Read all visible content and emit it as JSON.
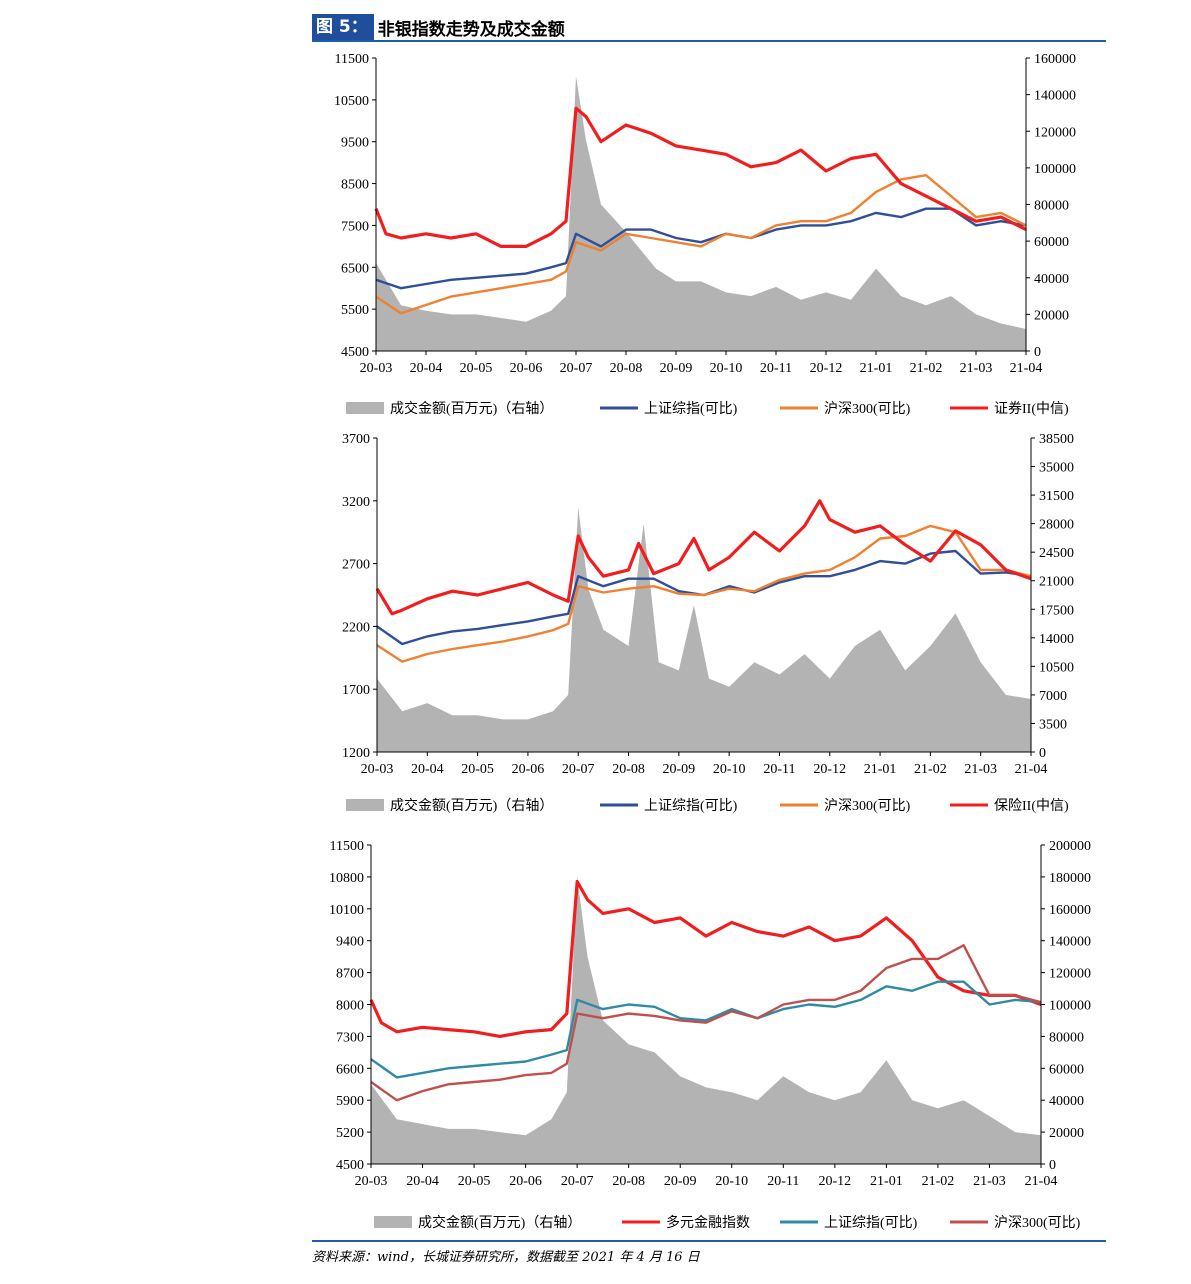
{
  "figure": {
    "label": "图 5：",
    "title": "非银指数走势及成交金额"
  },
  "source": "资料来源：wind，长城证券研究所，数据截至 2021 年 4 月 16 日",
  "chart_data": [
    {
      "type": "line",
      "x_ticks": [
        "20-03",
        "20-04",
        "20-05",
        "20-06",
        "20-07",
        "20-08",
        "20-09",
        "20-10",
        "20-11",
        "20-12",
        "21-01",
        "21-02",
        "21-03",
        "21-04"
      ],
      "y_left": {
        "ticks": [
          "4500",
          "5500",
          "6500",
          "7500",
          "8500",
          "9500",
          "10500",
          "11500"
        ],
        "lim": [
          4500,
          11500
        ]
      },
      "y_right": {
        "ticks": [
          "0",
          "20000",
          "40000",
          "60000",
          "80000",
          "100000",
          "120000",
          "140000",
          "160000"
        ],
        "lim": [
          0,
          160000
        ]
      },
      "series": [
        {
          "name": "成交金额(百万元)（右轴）",
          "kind": "area",
          "axis": "right",
          "color": "#b3b3b3",
          "x": [
            0,
            0.5,
            1,
            1.5,
            2,
            2.5,
            3,
            3.5,
            3.8,
            4.0,
            4.2,
            4.5,
            5,
            5.3,
            5.6,
            6,
            6.5,
            7,
            7.5,
            8,
            8.5,
            9,
            9.5,
            10,
            10.5,
            11,
            11.5,
            12,
            12.5,
            13
          ],
          "values": [
            48000,
            25000,
            22000,
            20000,
            20000,
            18000,
            16000,
            22000,
            30000,
            150000,
            115000,
            80000,
            65000,
            55000,
            45000,
            38000,
            38000,
            32000,
            30000,
            35000,
            28000,
            32000,
            28000,
            45000,
            30000,
            25000,
            30000,
            20000,
            15000,
            12000
          ]
        },
        {
          "name": "上证综指(可比)",
          "kind": "line",
          "axis": "left",
          "color": "#2f4f9a",
          "x": [
            0,
            0.5,
            1,
            1.5,
            2,
            2.5,
            3,
            3.5,
            3.8,
            4.0,
            4.5,
            5,
            5.5,
            6,
            6.5,
            7,
            7.5,
            8,
            8.5,
            9,
            9.5,
            10,
            10.5,
            11,
            11.5,
            12,
            12.5,
            13
          ],
          "values": [
            6200,
            6000,
            6100,
            6200,
            6250,
            6300,
            6350,
            6500,
            6600,
            7300,
            7000,
            7400,
            7400,
            7200,
            7100,
            7300,
            7200,
            7400,
            7500,
            7500,
            7600,
            7800,
            7700,
            7900,
            7900,
            7500,
            7600,
            7500
          ]
        },
        {
          "name": "沪深300(可比)",
          "kind": "line",
          "axis": "left",
          "color": "#ef8131",
          "x": [
            0,
            0.5,
            1,
            1.5,
            2,
            2.5,
            3,
            3.5,
            3.8,
            4.0,
            4.5,
            5,
            5.5,
            6,
            6.5,
            7,
            7.5,
            8,
            8.5,
            9,
            9.5,
            10,
            10.5,
            11,
            11.5,
            12,
            12.5,
            13
          ],
          "values": [
            5800,
            5400,
            5600,
            5800,
            5900,
            6000,
            6100,
            6200,
            6400,
            7100,
            6900,
            7300,
            7200,
            7100,
            7000,
            7300,
            7200,
            7500,
            7600,
            7600,
            7800,
            8300,
            8600,
            8700,
            8200,
            7700,
            7800,
            7500
          ]
        },
        {
          "name": "证券II(中信)",
          "kind": "line",
          "axis": "left",
          "color": "#f01e1e",
          "x": [
            0,
            0.2,
            0.5,
            1,
            1.5,
            2,
            2.5,
            3,
            3.5,
            3.8,
            4.0,
            4.2,
            4.5,
            5,
            5.5,
            6,
            6.5,
            7,
            7.5,
            8,
            8.5,
            9,
            9.5,
            10,
            10.5,
            11,
            11.5,
            12,
            12.5,
            13
          ],
          "values": [
            7900,
            7300,
            7200,
            7300,
            7200,
            7300,
            7000,
            7000,
            7300,
            7600,
            10300,
            10100,
            9500,
            9900,
            9700,
            9400,
            9300,
            9200,
            8900,
            9000,
            9300,
            8800,
            9100,
            9200,
            8500,
            8200,
            7900,
            7600,
            7700,
            7400
          ]
        }
      ]
    },
    {
      "type": "line",
      "x_ticks": [
        "20-03",
        "20-04",
        "20-05",
        "20-06",
        "20-07",
        "20-08",
        "20-09",
        "20-10",
        "20-11",
        "20-12",
        "21-01",
        "21-02",
        "21-03",
        "21-04"
      ],
      "y_left": {
        "ticks": [
          "1200",
          "1700",
          "2200",
          "2700",
          "3200",
          "3700"
        ],
        "lim": [
          1200,
          3700
        ]
      },
      "y_right": {
        "ticks": [
          "0",
          "3500",
          "7000",
          "10500",
          "14000",
          "17500",
          "21000",
          "24500",
          "28000",
          "31500",
          "35000",
          "38500"
        ],
        "lim": [
          0,
          38500
        ]
      },
      "series": [
        {
          "name": "成交金额(百万元)（右轴）",
          "kind": "area",
          "axis": "right",
          "color": "#b3b3b3",
          "x": [
            0,
            0.5,
            1,
            1.5,
            2,
            2.5,
            3,
            3.5,
            3.8,
            4.0,
            4.2,
            4.5,
            5,
            5.3,
            5.6,
            6,
            6.3,
            6.6,
            7,
            7.5,
            8,
            8.5,
            9,
            9.5,
            10,
            10.5,
            11,
            11.5,
            12,
            12.5,
            13
          ],
          "values": [
            9000,
            5000,
            6000,
            4500,
            4500,
            4000,
            4000,
            5000,
            7000,
            30000,
            20000,
            15000,
            13000,
            28000,
            11000,
            10000,
            18000,
            9000,
            8000,
            11000,
            9500,
            12000,
            9000,
            13000,
            15000,
            10000,
            13000,
            17000,
            11000,
            7000,
            6500
          ]
        },
        {
          "name": "上证综指(可比)",
          "kind": "line",
          "axis": "left",
          "color": "#2f4f9a",
          "x": [
            0,
            0.5,
            1,
            1.5,
            2,
            2.5,
            3,
            3.5,
            3.8,
            4.0,
            4.5,
            5,
            5.5,
            6,
            6.5,
            7,
            7.5,
            8,
            8.5,
            9,
            9.5,
            10,
            10.5,
            11,
            11.5,
            12,
            12.5,
            13
          ],
          "values": [
            2200,
            2060,
            2120,
            2160,
            2180,
            2210,
            2240,
            2280,
            2300,
            2600,
            2520,
            2580,
            2580,
            2480,
            2450,
            2520,
            2470,
            2550,
            2600,
            2600,
            2650,
            2720,
            2700,
            2780,
            2800,
            2620,
            2630,
            2600
          ]
        },
        {
          "name": "沪深300(可比)",
          "kind": "line",
          "axis": "left",
          "color": "#ef8131",
          "x": [
            0,
            0.5,
            1,
            1.5,
            2,
            2.5,
            3,
            3.5,
            3.8,
            4.0,
            4.5,
            5,
            5.5,
            6,
            6.5,
            7,
            7.5,
            8,
            8.5,
            9,
            9.5,
            10,
            10.5,
            11,
            11.5,
            12,
            12.5,
            13
          ],
          "values": [
            2050,
            1920,
            1980,
            2020,
            2050,
            2080,
            2120,
            2170,
            2220,
            2520,
            2470,
            2500,
            2520,
            2460,
            2450,
            2500,
            2480,
            2570,
            2620,
            2650,
            2750,
            2900,
            2920,
            3000,
            2950,
            2650,
            2650,
            2600
          ]
        },
        {
          "name": "保险II(中信)",
          "kind": "line",
          "axis": "left",
          "color": "#f01e1e",
          "x": [
            0,
            0.3,
            0.5,
            1,
            1.5,
            2,
            2.5,
            3,
            3.5,
            3.8,
            4.0,
            4.2,
            4.5,
            5,
            5.2,
            5.5,
            6,
            6.3,
            6.6,
            7,
            7.5,
            8,
            8.5,
            8.8,
            9,
            9.5,
            10,
            10.5,
            11,
            11.5,
            12,
            12.5,
            13
          ],
          "values": [
            2500,
            2300,
            2330,
            2420,
            2480,
            2450,
            2500,
            2550,
            2450,
            2400,
            2920,
            2750,
            2600,
            2650,
            2860,
            2620,
            2700,
            2900,
            2650,
            2750,
            2950,
            2800,
            3000,
            3200,
            3050,
            2950,
            3000,
            2850,
            2720,
            2960,
            2850,
            2650,
            2580
          ]
        }
      ]
    },
    {
      "type": "line",
      "x_ticks": [
        "20-03",
        "20-04",
        "20-05",
        "20-06",
        "20-07",
        "20-08",
        "20-09",
        "20-10",
        "20-11",
        "20-12",
        "21-01",
        "21-02",
        "21-03",
        "21-04"
      ],
      "y_left": {
        "ticks": [
          "4500",
          "5200",
          "5900",
          "6600",
          "7300",
          "8000",
          "8700",
          "9400",
          "10100",
          "10800",
          "11500"
        ],
        "lim": [
          4500,
          11500
        ]
      },
      "y_right": {
        "ticks": [
          "0",
          "20000",
          "40000",
          "60000",
          "80000",
          "100000",
          "120000",
          "140000",
          "160000",
          "180000",
          "200000"
        ],
        "lim": [
          0,
          200000
        ]
      },
      "series": [
        {
          "name": "成交金额(百万元)（右轴）",
          "kind": "area",
          "axis": "right",
          "color": "#b3b3b3",
          "x": [
            0,
            0.5,
            1,
            1.5,
            2,
            2.5,
            3,
            3.5,
            3.8,
            4.0,
            4.2,
            4.5,
            5,
            5.5,
            6,
            6.5,
            7,
            7.5,
            8,
            8.5,
            9,
            9.5,
            10,
            10.5,
            11,
            11.5,
            12,
            12.5,
            13
          ],
          "values": [
            50000,
            28000,
            25000,
            22000,
            22000,
            20000,
            18000,
            28000,
            45000,
            180000,
            130000,
            90000,
            75000,
            70000,
            55000,
            48000,
            45000,
            40000,
            55000,
            45000,
            40000,
            45000,
            65000,
            40000,
            35000,
            40000,
            30000,
            20000,
            18000
          ]
        },
        {
          "name": "多元金融指数",
          "kind": "line",
          "axis": "left",
          "color": "#f01e1e",
          "x": [
            0,
            0.2,
            0.5,
            1,
            1.5,
            2,
            2.5,
            3,
            3.5,
            3.8,
            4.0,
            4.2,
            4.5,
            5,
            5.5,
            6,
            6.5,
            7,
            7.5,
            8,
            8.5,
            9,
            9.5,
            10,
            10.5,
            11,
            11.5,
            12,
            12.5,
            13
          ],
          "values": [
            8100,
            7600,
            7400,
            7500,
            7450,
            7400,
            7300,
            7400,
            7450,
            7800,
            10700,
            10300,
            10000,
            10100,
            9800,
            9900,
            9500,
            9800,
            9600,
            9500,
            9700,
            9400,
            9500,
            9900,
            9400,
            8600,
            8300,
            8200,
            8200,
            8000
          ]
        },
        {
          "name": "上证综指(可比)",
          "kind": "line",
          "axis": "left",
          "color": "#2e8ba6",
          "x": [
            0,
            0.5,
            1,
            1.5,
            2,
            2.5,
            3,
            3.5,
            3.8,
            4.0,
            4.5,
            5,
            5.5,
            6,
            6.5,
            7,
            7.5,
            8,
            8.5,
            9,
            9.5,
            10,
            10.5,
            11,
            11.5,
            12,
            12.5,
            13
          ],
          "values": [
            6800,
            6400,
            6500,
            6600,
            6650,
            6700,
            6750,
            6900,
            7000,
            8100,
            7900,
            8000,
            7950,
            7700,
            7650,
            7900,
            7700,
            7900,
            8000,
            7950,
            8100,
            8400,
            8300,
            8500,
            8500,
            8000,
            8100,
            8050
          ]
        },
        {
          "name": "沪深300(可比)",
          "kind": "line",
          "axis": "left",
          "color": "#c0504d",
          "x": [
            0,
            0.5,
            1,
            1.5,
            2,
            2.5,
            3,
            3.5,
            3.8,
            4.0,
            4.5,
            5,
            5.5,
            6,
            6.5,
            7,
            7.5,
            8,
            8.5,
            9,
            9.5,
            10,
            10.5,
            11,
            11.5,
            12,
            12.5,
            13
          ],
          "values": [
            6300,
            5900,
            6100,
            6250,
            6300,
            6350,
            6450,
            6500,
            6700,
            7800,
            7700,
            7800,
            7750,
            7650,
            7600,
            7850,
            7700,
            8000,
            8100,
            8100,
            8300,
            8800,
            9000,
            9000,
            9300,
            8200,
            8200,
            8050
          ]
        }
      ]
    }
  ]
}
